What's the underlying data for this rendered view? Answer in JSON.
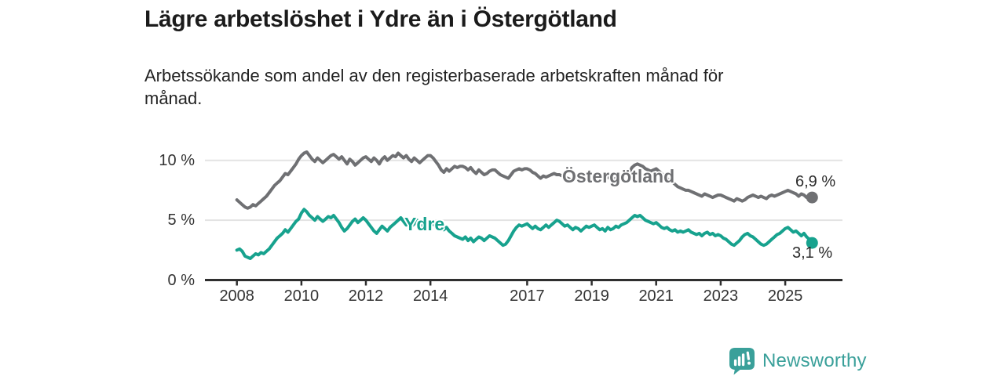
{
  "header": {
    "title": "Lägre arbetslöshet i Ydre än i Östergötland",
    "subtitle": "Arbetssökande som andel av den registerbaserade arbetskraften månad för månad.",
    "subtitle_lines": [
      "Arbetssökande som andel av den registerbaserade arbetskraften månad för",
      "månad."
    ]
  },
  "footer": {
    "brand": "Newsworthy"
  },
  "colors": {
    "ydre": "#17a28e",
    "ostergotland": "#6f7073",
    "axis": "#2f2f2f",
    "grid": "#e3e3e3",
    "label_text": "#2b2b2b",
    "tick_text": "#333333",
    "brand_teal": "#3aa09a"
  },
  "chart_data": {
    "type": "line",
    "title": "Lägre arbetslöshet i Ydre än i Östergötland",
    "xlabel": "",
    "ylabel": "",
    "unit": "%",
    "frequency": "monthly",
    "x_start": "2008-01",
    "x_end": "2025-11",
    "xlim": [
      2007.0,
      2026.8
    ],
    "ylim": [
      0,
      11.5
    ],
    "grid": "horizontal",
    "legend_position": "inline",
    "x_ticks": [
      2008,
      2010,
      2012,
      2014,
      2017,
      2019,
      2021,
      2023,
      2025
    ],
    "y_ticks": [
      0,
      5,
      10
    ],
    "y_tick_labels": [
      "0 %",
      "5 %",
      "10 %"
    ],
    "series": [
      {
        "name": "Östergötland",
        "color": "#6f7073",
        "end_label": "6,9 %",
        "end_value": 6.9,
        "values": [
          6.7,
          6.5,
          6.3,
          6.1,
          6.0,
          6.1,
          6.3,
          6.2,
          6.4,
          6.6,
          6.8,
          7.0,
          7.3,
          7.6,
          7.9,
          8.1,
          8.3,
          8.6,
          8.9,
          8.8,
          9.1,
          9.4,
          9.7,
          10.1,
          10.4,
          10.6,
          10.7,
          10.4,
          10.1,
          9.9,
          10.2,
          10.0,
          9.8,
          10.0,
          10.2,
          10.4,
          10.5,
          10.3,
          10.1,
          10.3,
          10.0,
          9.7,
          10.1,
          9.9,
          9.6,
          9.8,
          10.0,
          10.2,
          10.3,
          10.1,
          9.9,
          10.2,
          10.0,
          9.7,
          10.1,
          10.3,
          10.0,
          10.2,
          10.4,
          10.3,
          10.6,
          10.4,
          10.2,
          10.4,
          10.1,
          9.9,
          10.2,
          10.0,
          9.8,
          10.0,
          10.2,
          10.4,
          10.4,
          10.2,
          9.9,
          9.6,
          9.2,
          9.0,
          9.3,
          9.1,
          9.3,
          9.5,
          9.4,
          9.5,
          9.5,
          9.4,
          9.2,
          9.4,
          9.1,
          8.9,
          9.2,
          9.0,
          8.8,
          8.9,
          9.1,
          9.2,
          9.2,
          9.0,
          8.8,
          8.7,
          8.6,
          8.5,
          8.8,
          9.1,
          9.2,
          9.3,
          9.2,
          9.3,
          9.3,
          9.2,
          9.0,
          8.9,
          8.7,
          8.5,
          8.7,
          8.6,
          8.7,
          8.8,
          8.9,
          8.8,
          8.8,
          8.7,
          8.6,
          8.5,
          8.4,
          8.3,
          8.5,
          8.4,
          8.3,
          8.4,
          8.5,
          8.6,
          8.7,
          8.6,
          8.5,
          8.4,
          8.3,
          8.4,
          8.6,
          8.5,
          8.4,
          8.5,
          8.6,
          8.8,
          8.9,
          8.8,
          9.0,
          9.4,
          9.6,
          9.7,
          9.6,
          9.5,
          9.3,
          9.2,
          9.1,
          9.2,
          9.3,
          9.1,
          8.9,
          8.7,
          8.5,
          8.3,
          8.2,
          8.0,
          7.8,
          7.7,
          7.6,
          7.5,
          7.5,
          7.4,
          7.3,
          7.2,
          7.1,
          7.0,
          7.2,
          7.1,
          7.0,
          6.9,
          7.0,
          7.1,
          7.1,
          7.0,
          6.9,
          6.8,
          6.7,
          6.6,
          6.8,
          6.7,
          6.6,
          6.7,
          6.9,
          7.0,
          7.1,
          7.0,
          6.9,
          7.0,
          6.9,
          6.8,
          7.0,
          7.1,
          7.0,
          7.1,
          7.2,
          7.3,
          7.4,
          7.5,
          7.4,
          7.3,
          7.2,
          7.0,
          7.2,
          7.1,
          6.9,
          7.0,
          6.9
        ]
      },
      {
        "name": "Ydre",
        "color": "#17a28e",
        "end_label": "3,1 %",
        "end_value": 3.1,
        "values": [
          2.5,
          2.6,
          2.4,
          2.0,
          1.9,
          1.8,
          2.0,
          2.2,
          2.1,
          2.3,
          2.2,
          2.4,
          2.6,
          2.9,
          3.2,
          3.5,
          3.7,
          3.9,
          4.2,
          4.0,
          4.3,
          4.6,
          4.9,
          5.1,
          5.6,
          5.9,
          5.7,
          5.4,
          5.2,
          5.0,
          5.3,
          5.1,
          4.9,
          5.1,
          5.3,
          5.2,
          5.4,
          5.1,
          4.8,
          4.4,
          4.1,
          4.3,
          4.6,
          4.9,
          5.1,
          4.8,
          5.0,
          5.2,
          5.0,
          4.7,
          4.4,
          4.1,
          3.9,
          4.2,
          4.5,
          4.3,
          4.1,
          4.4,
          4.6,
          4.8,
          5.0,
          5.2,
          4.9,
          4.6,
          4.8,
          4.5,
          4.7,
          5.0,
          4.8,
          4.5,
          4.6,
          4.7,
          4.6,
          4.7,
          4.5,
          4.6,
          4.4,
          4.2,
          4.4,
          4.1,
          3.9,
          3.7,
          3.6,
          3.5,
          3.4,
          3.6,
          3.3,
          3.5,
          3.2,
          3.4,
          3.6,
          3.5,
          3.3,
          3.5,
          3.7,
          3.6,
          3.5,
          3.3,
          3.1,
          2.9,
          3.0,
          3.3,
          3.7,
          4.1,
          4.4,
          4.6,
          4.5,
          4.6,
          4.7,
          4.5,
          4.3,
          4.5,
          4.3,
          4.2,
          4.4,
          4.6,
          4.4,
          4.6,
          4.8,
          5.0,
          4.9,
          4.7,
          4.5,
          4.6,
          4.4,
          4.2,
          4.4,
          4.3,
          4.1,
          4.3,
          4.5,
          4.4,
          4.5,
          4.6,
          4.4,
          4.2,
          4.3,
          4.1,
          4.4,
          4.2,
          4.3,
          4.5,
          4.4,
          4.6,
          4.7,
          4.8,
          5.0,
          5.2,
          5.4,
          5.3,
          5.4,
          5.2,
          5.0,
          4.9,
          4.8,
          4.7,
          4.8,
          4.6,
          4.4,
          4.3,
          4.4,
          4.2,
          4.1,
          4.2,
          4.0,
          4.1,
          4.0,
          4.1,
          4.2,
          4.0,
          3.9,
          3.8,
          3.9,
          3.7,
          3.9,
          4.0,
          3.8,
          3.9,
          3.7,
          3.8,
          3.7,
          3.5,
          3.4,
          3.2,
          3.0,
          2.9,
          3.1,
          3.3,
          3.6,
          3.8,
          3.9,
          3.7,
          3.6,
          3.4,
          3.2,
          3.0,
          2.9,
          3.0,
          3.2,
          3.4,
          3.6,
          3.8,
          3.9,
          4.1,
          4.3,
          4.4,
          4.2,
          4.0,
          4.1,
          3.9,
          3.7,
          3.9,
          3.6,
          3.4,
          3.1
        ]
      }
    ]
  }
}
